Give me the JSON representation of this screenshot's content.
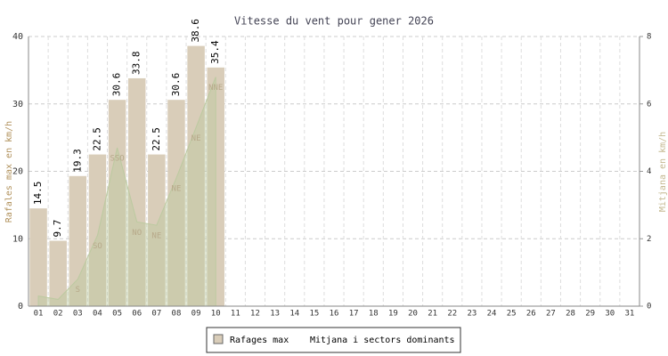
{
  "chart_data": {
    "type": "bar",
    "title": "Vitesse du vent pour gener 2026",
    "y_label": "Rafales max en km/h",
    "y2_label": "Mitjana en km/h",
    "categories": [
      "01",
      "02",
      "03",
      "04",
      "05",
      "06",
      "07",
      "08",
      "09",
      "10",
      "11",
      "12",
      "13",
      "14",
      "15",
      "16",
      "17",
      "18",
      "19",
      "20",
      "21",
      "22",
      "23",
      "24",
      "25",
      "26",
      "27",
      "28",
      "29",
      "30",
      "31"
    ],
    "series": [
      {
        "name": "Rafages max",
        "color": "#d9cdb9",
        "values": [
          14.5,
          9.7,
          19.3,
          22.5,
          30.6,
          33.8,
          22.5,
          30.6,
          38.6,
          35.4,
          null,
          null,
          null,
          null,
          null,
          null,
          null,
          null,
          null,
          null,
          null,
          null,
          null,
          null,
          null,
          null,
          null,
          null,
          null,
          null,
          null
        ]
      },
      {
        "name": "Mitjana i sectors dominants",
        "color": "#bccaa0",
        "axis": "y2",
        "values": [
          0.3,
          0.2,
          0.8,
          2.1,
          4.7,
          2.5,
          2.4,
          3.8,
          5.3,
          6.8,
          null,
          null,
          null,
          null,
          null,
          null,
          null,
          null,
          null,
          null,
          null,
          null,
          null,
          null,
          null,
          null,
          null,
          null,
          null,
          null,
          null
        ],
        "labels": [
          null,
          null,
          "S",
          "SO",
          "SSO",
          "NO",
          "NE",
          "NE",
          "NE",
          "NNE",
          null,
          null,
          null,
          null,
          null,
          null,
          null,
          null,
          null,
          null,
          null,
          null,
          null,
          null,
          null,
          null,
          null,
          null,
          null,
          null,
          null
        ]
      }
    ],
    "ylim": [
      0,
      40
    ],
    "yticks": [
      0,
      10,
      20,
      30,
      40
    ],
    "y2lim": [
      0,
      8
    ],
    "y2ticks": [
      0,
      2,
      4,
      6,
      8
    ],
    "grid": true
  }
}
